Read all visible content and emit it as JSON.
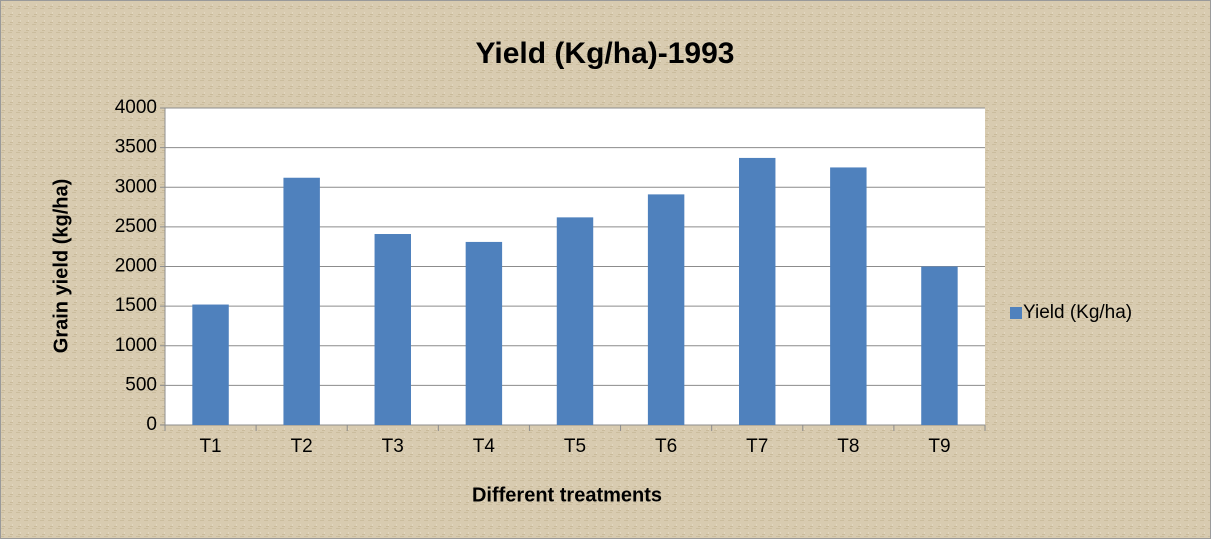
{
  "chart_data": {
    "type": "bar",
    "title": "Yield (Kg/ha)-1993",
    "x_label": "Different treatments",
    "y_label": "Grain yield (kg/ha)",
    "categories": [
      "T1",
      "T2",
      "T3",
      "T4",
      "T5",
      "T6",
      "T7",
      "T8",
      "T9"
    ],
    "series": [
      {
        "name": "Yield (Kg/ha)",
        "color": "#4f81bd",
        "values": [
          1520,
          3120,
          2410,
          2310,
          2620,
          2910,
          3370,
          3250,
          2000
        ]
      }
    ],
    "ylim": [
      0,
      4000
    ],
    "yticks": [
      0,
      500,
      1000,
      1500,
      2000,
      2500,
      3000,
      3500,
      4000
    ],
    "grid": true,
    "legend": "right"
  }
}
